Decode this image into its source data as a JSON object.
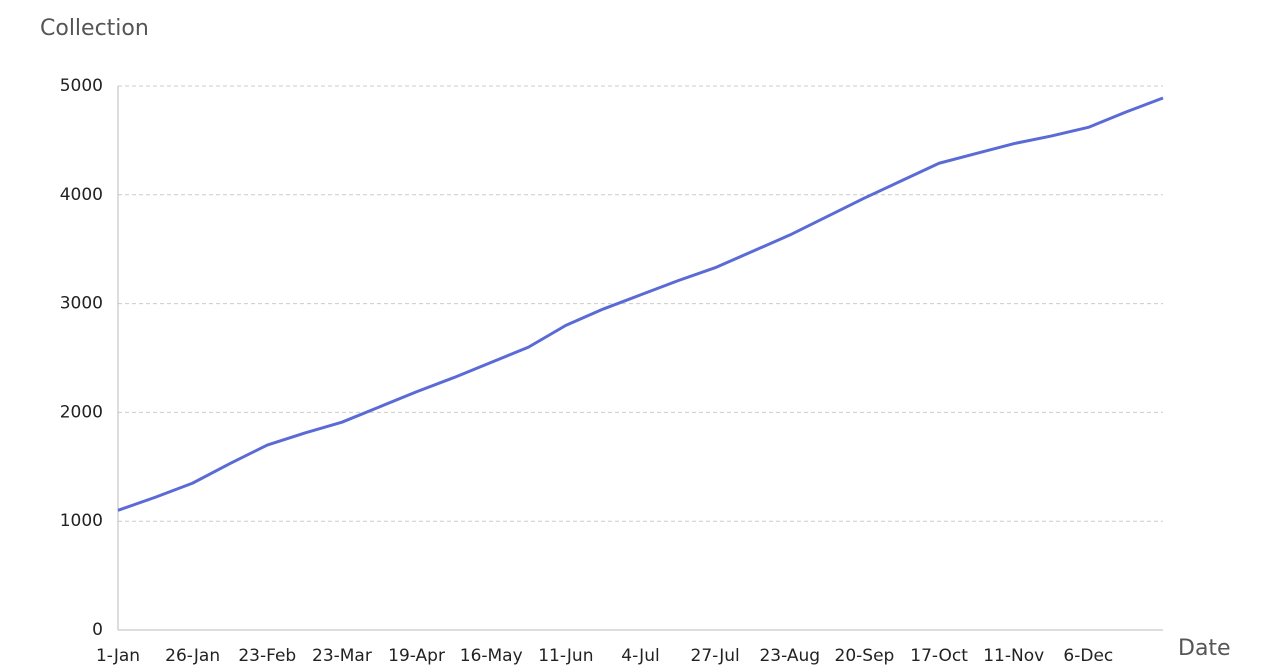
{
  "chart_data": {
    "type": "line",
    "y_label": "Collection",
    "x_label": "Date",
    "categories": [
      "1-Jan",
      null,
      "26-Jan",
      null,
      "23-Feb",
      null,
      "23-Mar",
      null,
      "19-Apr",
      null,
      "16-May",
      null,
      "11-Jun",
      null,
      "4-Jul",
      null,
      "27-Jul",
      null,
      "23-Aug",
      null,
      "20-Sep",
      null,
      "17-Oct",
      null,
      "11-Nov",
      null,
      "6-Dec",
      null,
      null
    ],
    "series": [
      {
        "name": "Collection",
        "color": "#5b6bd6",
        "values": [
          1100,
          1220,
          1350,
          1530,
          1700,
          1810,
          1910,
          2050,
          2190,
          2320,
          2460,
          2600,
          2800,
          2950,
          3080,
          3210,
          3330,
          3480,
          3630,
          3800,
          3970,
          4130,
          4290,
          4380,
          4470,
          4540,
          4620,
          4760,
          4890
        ]
      }
    ],
    "ylim": [
      0,
      5000
    ],
    "yticks": [
      0,
      1000,
      2000,
      3000,
      4000,
      5000
    ],
    "grid": true
  }
}
